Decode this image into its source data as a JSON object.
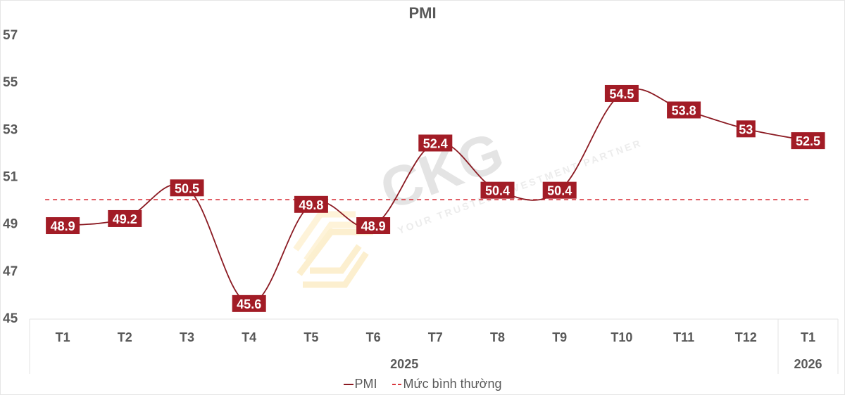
{
  "title": "PMI",
  "colors": {
    "line": "#8B1A22",
    "label_bg": "#A21C26",
    "reference_line": "#D9363E",
    "text": "#595959"
  },
  "legend": {
    "series_label": "PMI",
    "reference_label": "Mức bình thường"
  },
  "watermark": {
    "brand": "CKG",
    "tagline": "YOUR TRUSTED INVESTMENT PARTNER"
  },
  "chart_data": {
    "type": "line",
    "title": "PMI",
    "xlabel": "",
    "ylabel": "",
    "categories": [
      "T1",
      "T2",
      "T3",
      "T4",
      "T5",
      "T6",
      "T7",
      "T8",
      "T9",
      "T10",
      "T11",
      "T12",
      "T1"
    ],
    "year_groups": [
      {
        "label": "2025",
        "span": [
          0,
          11
        ]
      },
      {
        "label": "2026",
        "span": [
          12,
          12
        ]
      }
    ],
    "series": [
      {
        "name": "PMI",
        "values": [
          48.9,
          49.2,
          50.5,
          45.6,
          49.8,
          48.9,
          52.4,
          50.4,
          50.4,
          54.5,
          53.8,
          53,
          52.5
        ],
        "smooth": true,
        "data_labels": true
      },
      {
        "name": "Mức bình thường",
        "values": [
          50,
          50,
          50,
          50,
          50,
          50,
          50,
          50,
          50,
          50,
          50,
          50,
          50
        ],
        "style": "dashed"
      }
    ],
    "ylim": [
      45,
      57
    ],
    "yticks": [
      45,
      47,
      49,
      51,
      53,
      55,
      57
    ],
    "grid": false,
    "legend_position": "bottom"
  }
}
